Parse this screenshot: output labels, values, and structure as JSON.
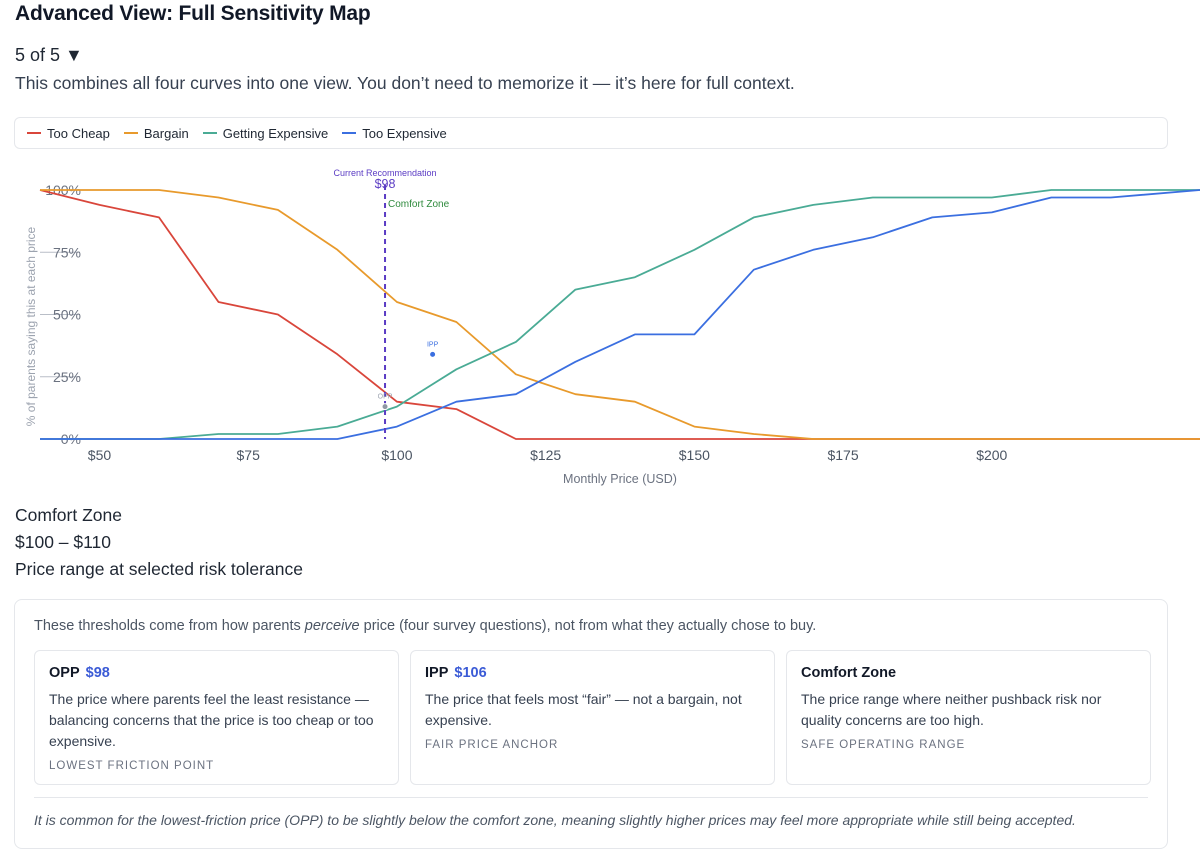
{
  "page": {
    "title": "Advanced View: Full Sensitivity Map",
    "stepper": "5 of 5 ▼",
    "description": "This combines all four curves into one view. You don’t need to memorize it — it’s here for full context."
  },
  "legend": [
    {
      "label": "Too Cheap",
      "color": "#d9463b"
    },
    {
      "label": "Bargain",
      "color": "#e89a2c"
    },
    {
      "label": "Getting Expensive",
      "color": "#4aab95"
    },
    {
      "label": "Too Expensive",
      "color": "#3b6fe0"
    }
  ],
  "chart_data": {
    "type": "line",
    "xlabel": "Monthly Price (USD)",
    "ylabel": "% of parents saying this at each price",
    "xlim": [
      40,
      235
    ],
    "ylim": [
      0,
      100
    ],
    "x_ticks": [
      "$50",
      "$75",
      "$100",
      "$125",
      "$150",
      "$175",
      "$200"
    ],
    "x_tick_values": [
      50,
      75,
      100,
      125,
      150,
      175,
      200
    ],
    "y_ticks": [
      "0%",
      "25%",
      "50%",
      "75%",
      "100%"
    ],
    "y_tick_values": [
      0,
      25,
      50,
      75,
      100
    ],
    "grid": false,
    "series": [
      {
        "name": "Too Cheap",
        "color": "#d9463b",
        "x": [
          40,
          50,
          60,
          70,
          80,
          90,
          100,
          110,
          120,
          130,
          140,
          150,
          160,
          170,
          180,
          190,
          200,
          210,
          220,
          235
        ],
        "values": [
          100,
          94,
          89,
          55,
          50,
          34,
          15,
          12,
          0,
          0,
          0,
          0,
          0,
          0,
          0,
          0,
          0,
          0,
          0,
          0
        ]
      },
      {
        "name": "Bargain",
        "color": "#e89a2c",
        "x": [
          40,
          50,
          60,
          70,
          80,
          90,
          100,
          110,
          120,
          130,
          140,
          150,
          160,
          170,
          180,
          190,
          200,
          210,
          220,
          235
        ],
        "values": [
          100,
          100,
          100,
          97,
          92,
          76,
          55,
          47,
          26,
          18,
          15,
          5,
          2,
          0,
          0,
          0,
          0,
          0,
          0,
          0
        ]
      },
      {
        "name": "Getting Expensive",
        "color": "#4aab95",
        "x": [
          40,
          50,
          60,
          70,
          80,
          90,
          100,
          110,
          120,
          130,
          140,
          150,
          160,
          170,
          180,
          190,
          200,
          210,
          220,
          235
        ],
        "values": [
          0,
          0,
          0,
          2,
          2,
          5,
          13,
          28,
          39,
          60,
          65,
          76,
          89,
          94,
          97,
          97,
          97,
          100,
          100,
          100
        ]
      },
      {
        "name": "Too Expensive",
        "color": "#3b6fe0",
        "x": [
          40,
          50,
          60,
          70,
          80,
          90,
          100,
          110,
          120,
          130,
          140,
          150,
          160,
          170,
          180,
          190,
          200,
          210,
          220,
          235
        ],
        "values": [
          0,
          0,
          0,
          0,
          0,
          0,
          5,
          15,
          18,
          31,
          42,
          42,
          68,
          76,
          81,
          89,
          91,
          97,
          97,
          100
        ]
      }
    ],
    "points": [
      {
        "label": "OPP",
        "x": 98,
        "y": 13
      },
      {
        "label": "IPP",
        "x": 106,
        "y": 34
      }
    ],
    "annotations": {
      "recommendation_label": "Current Recommendation",
      "recommendation_value": "$98",
      "recommendation_x": 98,
      "comfort_zone_label": "Comfort Zone"
    }
  },
  "comfort_zone": {
    "title": "Comfort Zone",
    "range": "$100 – $110",
    "subtitle": "Price range at selected risk tolerance"
  },
  "info_panel": {
    "intro_before": "These thresholds come from how parents ",
    "intro_em": "perceive",
    "intro_after": " price (four survey questions), not from what they actually chose to buy.",
    "cards": [
      {
        "title": "OPP",
        "value": "$98",
        "body": "The price where parents feel the least resistance — balancing concerns that the price is too cheap or too expensive.",
        "tag": "LOWEST FRICTION POINT"
      },
      {
        "title": "IPP",
        "value": "$106",
        "body": "The price that feels most “fair” — not a bargain, not expensive.",
        "tag": "FAIR PRICE ANCHOR"
      },
      {
        "title": "Comfort Zone",
        "value": "",
        "body": "The price range where neither pushback risk nor quality concerns are too high.",
        "tag": "SAFE OPERATING RANGE"
      }
    ],
    "footnote": "It is common for the lowest-friction price (OPP) to be slightly below the comfort zone, meaning slightly higher prices may feel more appropriate while still being accepted."
  }
}
